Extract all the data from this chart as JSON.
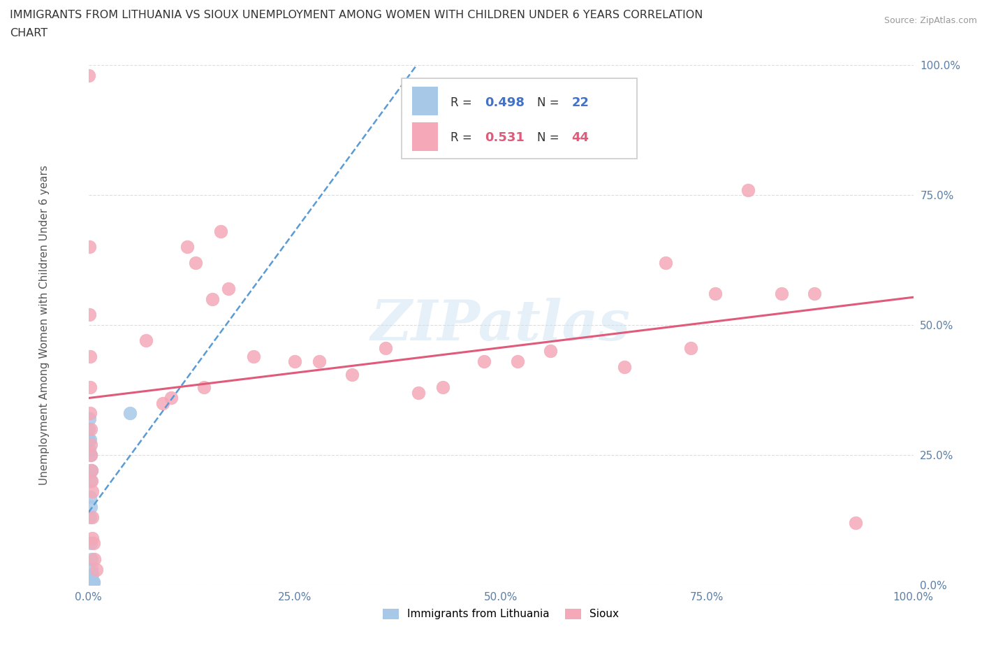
{
  "title_line1": "IMMIGRANTS FROM LITHUANIA VS SIOUX UNEMPLOYMENT AMONG WOMEN WITH CHILDREN UNDER 6 YEARS CORRELATION",
  "title_line2": "CHART",
  "source": "Source: ZipAtlas.com",
  "ylabel": "Unemployment Among Women with Children Under 6 years",
  "watermark": "ZIPatlas",
  "blue_color": "#a8c8e8",
  "pink_color": "#f4a8b8",
  "blue_line_color": "#5b9bd5",
  "pink_line_color": "#e05a7a",
  "blue_scatter": [
    [
      0.0,
      0.3
    ],
    [
      0.0,
      0.28
    ],
    [
      0.001,
      0.32
    ],
    [
      0.001,
      0.26
    ],
    [
      0.002,
      0.28
    ],
    [
      0.002,
      0.22
    ],
    [
      0.002,
      0.17
    ],
    [
      0.002,
      0.13
    ],
    [
      0.003,
      0.25
    ],
    [
      0.003,
      0.2
    ],
    [
      0.003,
      0.15
    ],
    [
      0.003,
      0.08
    ],
    [
      0.004,
      0.22
    ],
    [
      0.004,
      0.05
    ],
    [
      0.004,
      0.03
    ],
    [
      0.005,
      0.02
    ],
    [
      0.005,
      0.01
    ],
    [
      0.005,
      0.005
    ],
    [
      0.005,
      0.005
    ],
    [
      0.006,
      0.005
    ],
    [
      0.006,
      0.005
    ],
    [
      0.05,
      0.33
    ]
  ],
  "pink_scatter": [
    [
      0.0,
      0.98
    ],
    [
      0.001,
      0.65
    ],
    [
      0.001,
      0.52
    ],
    [
      0.002,
      0.44
    ],
    [
      0.002,
      0.38
    ],
    [
      0.002,
      0.33
    ],
    [
      0.003,
      0.3
    ],
    [
      0.003,
      0.25
    ],
    [
      0.003,
      0.27
    ],
    [
      0.004,
      0.22
    ],
    [
      0.004,
      0.2
    ],
    [
      0.005,
      0.18
    ],
    [
      0.005,
      0.13
    ],
    [
      0.005,
      0.09
    ],
    [
      0.006,
      0.08
    ],
    [
      0.007,
      0.05
    ],
    [
      0.01,
      0.03
    ],
    [
      0.07,
      0.47
    ],
    [
      0.09,
      0.35
    ],
    [
      0.1,
      0.36
    ],
    [
      0.12,
      0.65
    ],
    [
      0.13,
      0.62
    ],
    [
      0.14,
      0.38
    ],
    [
      0.15,
      0.55
    ],
    [
      0.16,
      0.68
    ],
    [
      0.17,
      0.57
    ],
    [
      0.2,
      0.44
    ],
    [
      0.25,
      0.43
    ],
    [
      0.28,
      0.43
    ],
    [
      0.32,
      0.405
    ],
    [
      0.36,
      0.455
    ],
    [
      0.4,
      0.37
    ],
    [
      0.43,
      0.38
    ],
    [
      0.48,
      0.43
    ],
    [
      0.52,
      0.43
    ],
    [
      0.56,
      0.45
    ],
    [
      0.65,
      0.42
    ],
    [
      0.7,
      0.62
    ],
    [
      0.73,
      0.455
    ],
    [
      0.76,
      0.56
    ],
    [
      0.8,
      0.76
    ],
    [
      0.84,
      0.56
    ],
    [
      0.88,
      0.56
    ],
    [
      0.93,
      0.12
    ]
  ],
  "xlim": [
    0.0,
    1.0
  ],
  "ylim": [
    0.0,
    1.0
  ],
  "xticks": [
    0.0,
    0.25,
    0.5,
    0.75,
    1.0
  ],
  "xtick_labels": [
    "0.0%",
    "25.0%",
    "50.0%",
    "75.0%",
    "100.0%"
  ],
  "yticks": [
    0.0,
    0.25,
    0.5,
    0.75,
    1.0
  ],
  "ytick_labels": [
    "0.0%",
    "25.0%",
    "50.0%",
    "75.0%",
    "100.0%"
  ],
  "background_color": "#ffffff",
  "grid_color": "#dddddd",
  "blue_r": 0.498,
  "blue_n": 22,
  "pink_r": 0.531,
  "pink_n": 44
}
